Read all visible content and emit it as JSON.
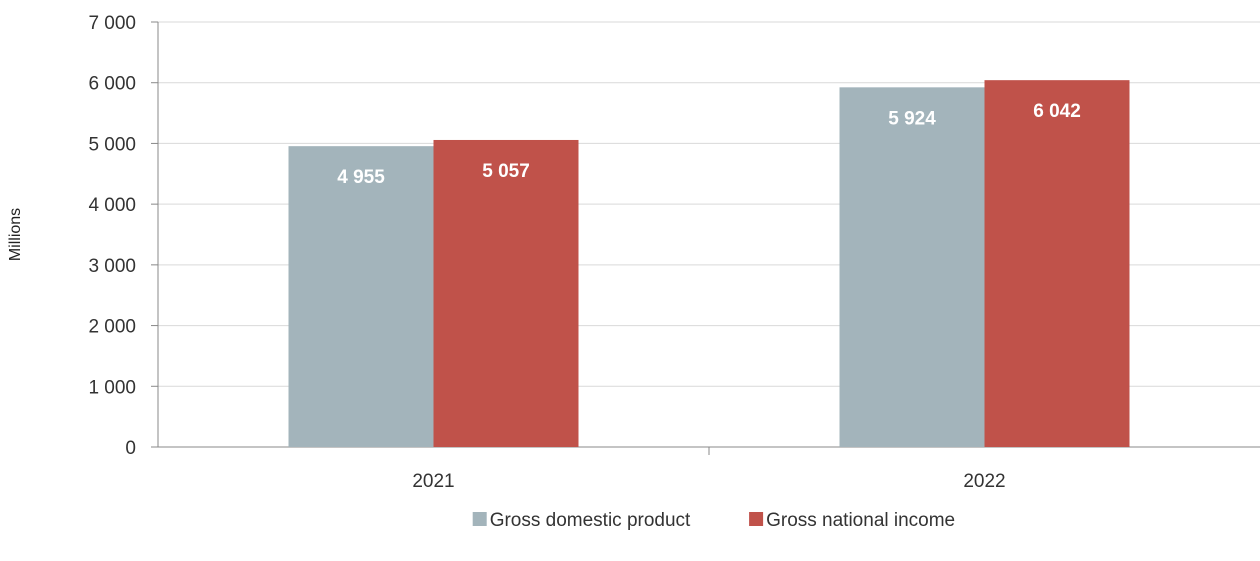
{
  "chart_data": {
    "type": "bar",
    "categories": [
      "2021",
      "2022"
    ],
    "series": [
      {
        "name": "Gross domestic product",
        "values": [
          4955,
          5924
        ],
        "labels": [
          "4 955",
          "5 924"
        ],
        "color": "#a3b4bb"
      },
      {
        "name": "Gross national income",
        "values": [
          5057,
          6042
        ],
        "labels": [
          "5 057",
          "6 042"
        ],
        "color": "#c0524a"
      }
    ],
    "ylabel": "Millions",
    "ylim": [
      0,
      7000
    ],
    "yticks": [
      {
        "value": 0,
        "label": "0"
      },
      {
        "value": 1000,
        "label": "1 000"
      },
      {
        "value": 2000,
        "label": "2 000"
      },
      {
        "value": 3000,
        "label": "3 000"
      },
      {
        "value": 4000,
        "label": "4 000"
      },
      {
        "value": 5000,
        "label": "5 000"
      },
      {
        "value": 6000,
        "label": "6 000"
      },
      {
        "value": 7000,
        "label": "7 000"
      }
    ],
    "grid": true,
    "legend_position": "bottom-center"
  }
}
